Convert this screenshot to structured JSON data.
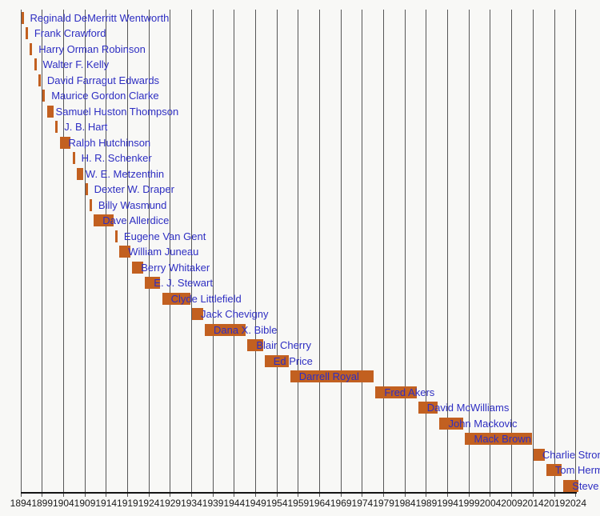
{
  "chart_data": {
    "type": "bar",
    "subtype": "timeline-gantt",
    "title": "",
    "orientation": "horizontal-time",
    "grid": "vertical-on",
    "legend": "none",
    "bar_color": "#c26020",
    "label_color": "#2e2ec2",
    "gridline_color": "#575757",
    "axis_color": "#141414",
    "background_color": "#f8f8f6",
    "x_axis": {
      "min": 1894,
      "max": 2024,
      "tick_interval": 5,
      "tick_labels": [
        "1894",
        "1899",
        "1904",
        "1909",
        "1914",
        "1919",
        "1924",
        "1929",
        "1934",
        "1939",
        "1944",
        "1949",
        "1954",
        "1959",
        "1964",
        "1969",
        "1974",
        "1979",
        "1984",
        "1989",
        "1994",
        "1999",
        "2004",
        "2009",
        "2014",
        "2019",
        "2024"
      ]
    },
    "bars": [
      {
        "label": "Reginald DeMerritt Wentworth",
        "start": 1894,
        "end": 1894
      },
      {
        "label": "Frank Crawford",
        "start": 1895,
        "end": 1895
      },
      {
        "label": "Harry Orman Robinson",
        "start": 1896,
        "end": 1896
      },
      {
        "label": "Walter F. Kelly",
        "start": 1897,
        "end": 1897
      },
      {
        "label": "David Farragut Edwards",
        "start": 1898,
        "end": 1898
      },
      {
        "label": "Maurice Gordon Clarke",
        "start": 1899,
        "end": 1899
      },
      {
        "label": "Samuel Huston Thompson",
        "start": 1900,
        "end": 1901
      },
      {
        "label": "J. B. Hart",
        "start": 1902,
        "end": 1902
      },
      {
        "label": "Ralph Hutchinson",
        "start": 1903,
        "end": 1905
      },
      {
        "label": "H. R. Schenker",
        "start": 1906,
        "end": 1906
      },
      {
        "label": "W. E. Metzenthin",
        "start": 1907,
        "end": 1908
      },
      {
        "label": "Dexter W. Draper",
        "start": 1909,
        "end": 1909
      },
      {
        "label": "Billy Wasmund",
        "start": 1910,
        "end": 1910
      },
      {
        "label": "Dave Allerdice",
        "start": 1911,
        "end": 1915
      },
      {
        "label": "Eugene Van Gent",
        "start": 1916,
        "end": 1916
      },
      {
        "label": "William Juneau",
        "start": 1917,
        "end": 1919
      },
      {
        "label": "Berry Whitaker",
        "start": 1920,
        "end": 1922
      },
      {
        "label": "E. J. Stewart",
        "start": 1923,
        "end": 1926
      },
      {
        "label": "Clyde Littlefield",
        "start": 1927,
        "end": 1933
      },
      {
        "label": "Jack Chevigny",
        "start": 1934,
        "end": 1936
      },
      {
        "label": "Dana X. Bible",
        "start": 1937,
        "end": 1946
      },
      {
        "label": "Blair Cherry",
        "start": 1947,
        "end": 1950
      },
      {
        "label": "Ed Price",
        "start": 1951,
        "end": 1956
      },
      {
        "label": "Darrell Royal",
        "start": 1957,
        "end": 1976
      },
      {
        "label": "Fred Akers",
        "start": 1977,
        "end": 1986
      },
      {
        "label": "David McWilliams",
        "start": 1987,
        "end": 1991
      },
      {
        "label": "John Mackovic",
        "start": 1992,
        "end": 1997
      },
      {
        "label": "Mack Brown",
        "start": 1998,
        "end": 2013
      },
      {
        "label": "Charlie Strong",
        "start": 2014,
        "end": 2016
      },
      {
        "label": "Tom Herman",
        "start": 2017,
        "end": 2020
      },
      {
        "label": "Steve Sarkisian",
        "start": 2021,
        "end": 2024
      }
    ]
  }
}
